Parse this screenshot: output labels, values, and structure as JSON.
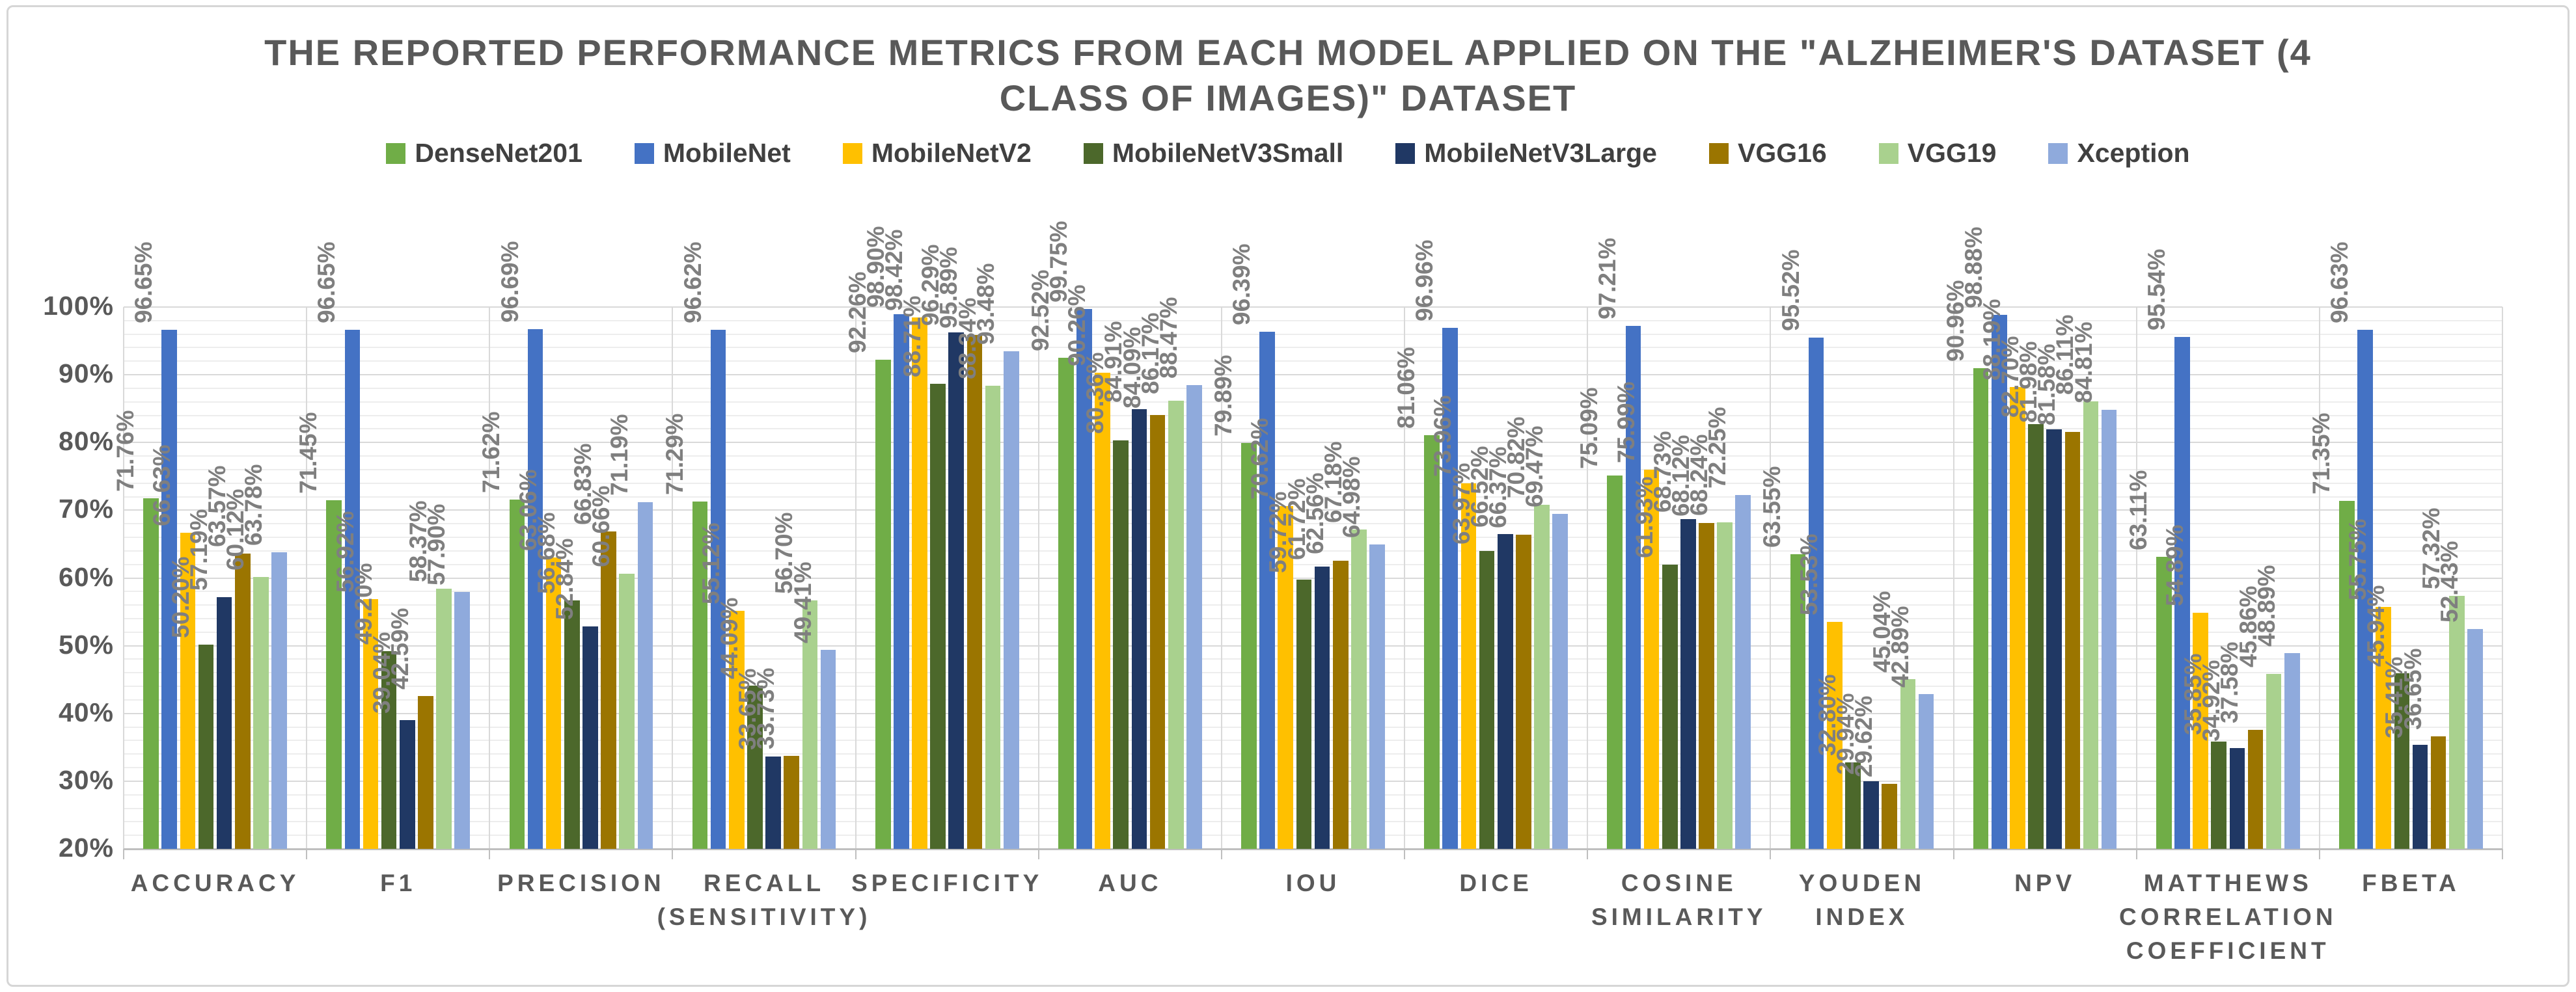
{
  "title": "THE REPORTED PERFORMANCE METRICS FROM EACH MODEL APPLIED ON THE \"ALZHEIMER'S DATASET (4 CLASS OF IMAGES)\" DATASET",
  "chart_data": {
    "type": "bar",
    "title": "THE REPORTED PERFORMANCE METRICS FROM EACH MODEL APPLIED ON THE \"ALZHEIMER'S DATASET (4 CLASS OF IMAGES)\" DATASET",
    "legend_position": "top",
    "grid": "horizontal major every 10%, minor every 2%, vertical category separators",
    "ylim": [
      20,
      100
    ],
    "y_major_step": 10,
    "y_minor_step": 2,
    "value_suffix": "%",
    "y_ticks": [
      "20%",
      "30%",
      "40%",
      "50%",
      "60%",
      "70%",
      "80%",
      "90%",
      "100%"
    ],
    "categories": [
      "ACCURACY",
      "F1",
      "PRECISION",
      "RECALL (SENSITIVITY)",
      "SPECIFICITY",
      "AUC",
      "IOU",
      "DICE",
      "COSINE SIMILARITY",
      "YOUDEN INDEX",
      "NPV",
      "MATTHEWS CORRELATION COEFFICIENT",
      "FBETA"
    ],
    "series": [
      {
        "name": "DenseNet201",
        "color": "#70AD47",
        "values": [
          71.76,
          71.45,
          71.62,
          71.29,
          92.26,
          92.52,
          79.89,
          81.06,
          75.09,
          63.55,
          90.96,
          63.11,
          71.35
        ]
      },
      {
        "name": "MobileNet",
        "color": "#4472C4",
        "values": [
          96.65,
          96.65,
          96.69,
          96.62,
          98.9,
          99.75,
          96.39,
          96.96,
          97.21,
          95.52,
          98.88,
          95.54,
          96.63
        ]
      },
      {
        "name": "MobileNetV2",
        "color": "#FFC000",
        "values": [
          66.63,
          56.92,
          63.06,
          55.12,
          98.42,
          90.26,
          70.62,
          73.96,
          75.99,
          53.53,
          88.19,
          54.89,
          55.75
        ]
      },
      {
        "name": "MobileNetV3Small",
        "color": "#4C682B",
        "values": [
          50.2,
          49.2,
          56.68,
          44.09,
          88.71,
          80.36,
          59.72,
          63.97,
          61.93,
          32.8,
          82.7,
          35.85,
          45.94
        ]
      },
      {
        "name": "MobileNetV3Large",
        "color": "#203864",
        "values": [
          57.19,
          39.04,
          52.84,
          33.65,
          96.29,
          84.91,
          61.72,
          66.52,
          68.73,
          29.94,
          81.98,
          34.92,
          35.41
        ]
      },
      {
        "name": "VGG16",
        "color": "#9B7500",
        "values": [
          63.57,
          42.59,
          66.83,
          33.73,
          95.89,
          84.09,
          62.56,
          66.37,
          68.12,
          29.62,
          81.58,
          37.58,
          36.65
        ]
      },
      {
        "name": "VGG19",
        "color": "#A9D18E",
        "values": [
          60.12,
          58.37,
          60.66,
          56.7,
          88.34,
          86.17,
          67.18,
          70.82,
          68.24,
          45.04,
          86.11,
          45.86,
          57.32
        ]
      },
      {
        "name": "Xception",
        "color": "#8FAADC",
        "values": [
          63.78,
          57.9,
          71.19,
          49.41,
          93.48,
          88.47,
          64.98,
          69.47,
          72.25,
          42.89,
          84.81,
          48.89,
          52.43
        ]
      }
    ]
  }
}
